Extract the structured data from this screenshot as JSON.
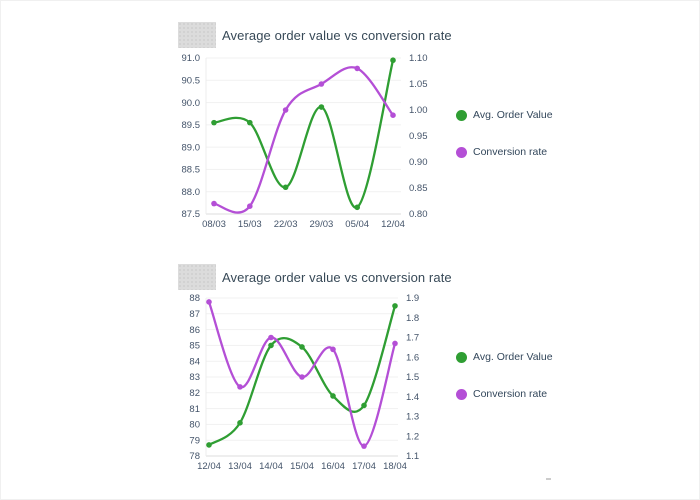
{
  "chart_data": [
    {
      "type": "line",
      "title": "Average order value vs conversion rate",
      "x": [
        "08/03",
        "15/03",
        "22/03",
        "29/03",
        "05/04",
        "12/04"
      ],
      "series": [
        {
          "name": "Avg. Order Value",
          "axis": "left",
          "color": "#2f9e33",
          "values": [
            89.55,
            89.55,
            88.1,
            89.9,
            87.65,
            90.95
          ]
        },
        {
          "name": "Conversion rate",
          "axis": "right",
          "color": "#b44fd6",
          "values": [
            0.82,
            0.815,
            1.0,
            1.05,
            1.08,
            0.99
          ]
        }
      ],
      "left_axis": {
        "min": 87.5,
        "max": 91.0,
        "ticks": [
          "91.0",
          "90.5",
          "90.0",
          "89.5",
          "89.0",
          "88.5",
          "88.0",
          "87.5"
        ]
      },
      "right_axis": {
        "min": 0.8,
        "max": 1.1,
        "ticks": [
          "1.10",
          "1.05",
          "1.00",
          "0.95",
          "0.90",
          "0.85",
          "0.80"
        ]
      },
      "grid": true,
      "legend_position": "right"
    },
    {
      "type": "line",
      "title": "Average order value vs conversion rate",
      "x": [
        "12/04",
        "13/04",
        "14/04",
        "15/04",
        "16/04",
        "17/04",
        "18/04"
      ],
      "series": [
        {
          "name": "Avg. Order Value",
          "axis": "left",
          "color": "#2f9e33",
          "values": [
            78.7,
            80.1,
            85.0,
            84.9,
            81.8,
            81.2,
            87.5
          ]
        },
        {
          "name": "Conversion rate",
          "axis": "right",
          "color": "#b44fd6",
          "values": [
            1.88,
            1.45,
            1.7,
            1.5,
            1.64,
            1.15,
            1.67
          ]
        }
      ],
      "left_axis": {
        "min": 78,
        "max": 88,
        "ticks": [
          "88",
          "87",
          "86",
          "85",
          "84",
          "83",
          "82",
          "81",
          "80",
          "79",
          "78"
        ]
      },
      "right_axis": {
        "min": 1.1,
        "max": 1.9,
        "ticks": [
          "1.9",
          "1.8",
          "1.7",
          "1.6",
          "1.5",
          "1.4",
          "1.3",
          "1.2",
          "1.1"
        ]
      },
      "grid": true,
      "legend_position": "right"
    }
  ],
  "colors": {
    "avg_order_value": "#2f9e33",
    "conversion_rate": "#b44fd6",
    "gridline": "#f1f1f1",
    "axis_line": "#dcdcdc",
    "tick_text": "#44546a"
  }
}
